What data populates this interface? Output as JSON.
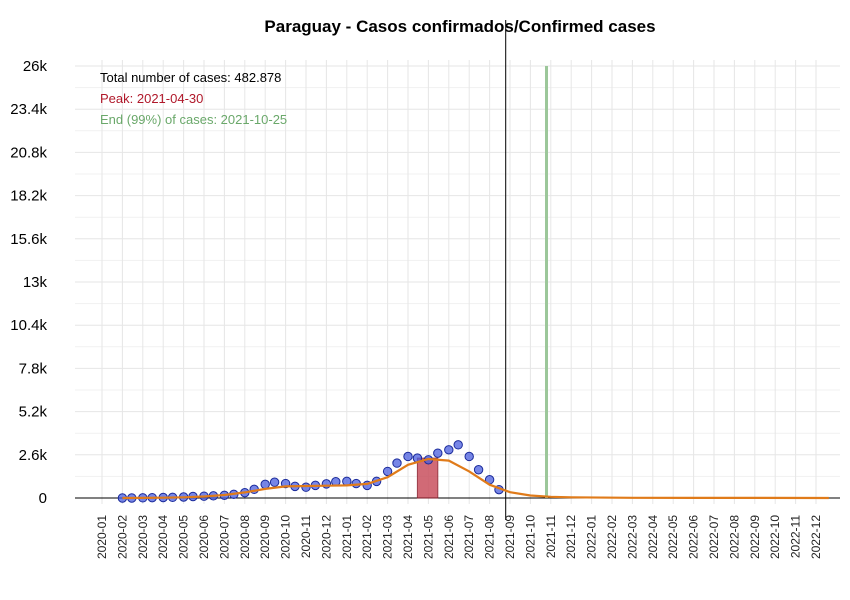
{
  "chart_data": {
    "type": "scatter",
    "title": "Paraguay - Casos confirmados/Confirmed cases",
    "xlabel": "",
    "ylabel": "",
    "ylim": [
      0,
      26000
    ],
    "y_ticks": [
      "0",
      "2.6k",
      "5.2k",
      "7.8k",
      "10.4k",
      "13k",
      "15.6k",
      "18.2k",
      "20.8k",
      "23.4k",
      "26k"
    ],
    "x_ticks": [
      "2020-01",
      "2020-02",
      "2020-03",
      "2020-04",
      "2020-05",
      "2020-06",
      "2020-07",
      "2020-08",
      "2020-09",
      "2020-10",
      "2020-11",
      "2020-12",
      "2021-01",
      "2021-02",
      "2021-03",
      "2021-04",
      "2021-05",
      "2021-06",
      "2021-07",
      "2021-08",
      "2021-09",
      "2021-10",
      "2021-11",
      "2021-12",
      "2022-01",
      "2022-02",
      "2022-03",
      "2022-04",
      "2022-05",
      "2022-06",
      "2022-07",
      "2022-08",
      "2022-09",
      "2022-10",
      "2022-11",
      "2022-12"
    ],
    "grid": true,
    "annotations": {
      "total": "Total number of cases: 482.878",
      "peak": "Peak: 2021-04-30",
      "end": "End (99%) of cases: 2021-10-25"
    },
    "vertical_lines": {
      "today": "2021-08-25",
      "end": "2021-10-25"
    },
    "peak_bar": {
      "x_start": "2021-04-15",
      "x_end": "2021-05-15",
      "y": 2400
    },
    "series": [
      {
        "kind": "points",
        "x": [
          "2020-02-01",
          "2020-02-15",
          "2020-03-01",
          "2020-03-15",
          "2020-04-01",
          "2020-04-15",
          "2020-05-01",
          "2020-05-15",
          "2020-06-01",
          "2020-06-15",
          "2020-07-01",
          "2020-07-15",
          "2020-08-01",
          "2020-08-15",
          "2020-09-01",
          "2020-09-15",
          "2020-10-01",
          "2020-10-15",
          "2020-11-01",
          "2020-11-15",
          "2020-12-01",
          "2020-12-15",
          "2021-01-01",
          "2021-01-15",
          "2021-02-01",
          "2021-02-15",
          "2021-03-01",
          "2021-03-15",
          "2021-04-01",
          "2021-04-15",
          "2021-05-01",
          "2021-05-15",
          "2021-06-01",
          "2021-06-15",
          "2021-07-01",
          "2021-07-15",
          "2021-08-01",
          "2021-08-15"
        ],
        "values": [
          0,
          0,
          10,
          20,
          30,
          40,
          60,
          90,
          110,
          130,
          160,
          220,
          320,
          520,
          820,
          950,
          870,
          700,
          650,
          760,
          850,
          980,
          1000,
          870,
          760,
          1000,
          1600,
          2100,
          2500,
          2400,
          2300,
          2700,
          2900,
          3200,
          2500,
          1700,
          1100,
          500
        ]
      },
      {
        "kind": "line",
        "x": [
          "2020-02-01",
          "2020-03-01",
          "2020-04-01",
          "2020-05-01",
          "2020-06-01",
          "2020-07-01",
          "2020-08-01",
          "2020-09-01",
          "2020-10-01",
          "2020-11-01",
          "2020-12-01",
          "2021-01-01",
          "2021-02-01",
          "2021-03-01",
          "2021-04-01",
          "2021-05-01",
          "2021-06-01",
          "2021-07-01",
          "2021-08-01",
          "2021-09-01",
          "2021-10-01",
          "2021-11-01",
          "2021-12-01",
          "2022-03-01",
          "2022-06-01",
          "2022-09-01",
          "2022-12-20"
        ],
        "values": [
          0,
          5,
          20,
          40,
          90,
          180,
          340,
          550,
          700,
          720,
          740,
          760,
          850,
          1250,
          2000,
          2350,
          2250,
          1600,
          800,
          350,
          150,
          70,
          40,
          15,
          8,
          5,
          3
        ]
      }
    ],
    "colors": {
      "points_fill": "#4a5ddf",
      "points_stroke": "#1a2a9a",
      "fit_line": "#e07b1a",
      "peak_bar_fill": "#c9515f",
      "peak_bar_stroke": "#8a1c2a",
      "peak_text": "#b0182a",
      "end_line": "#9cc79a",
      "end_text": "#6aa86a",
      "today_line": "#000000",
      "grid": "#e6e6e6"
    }
  }
}
